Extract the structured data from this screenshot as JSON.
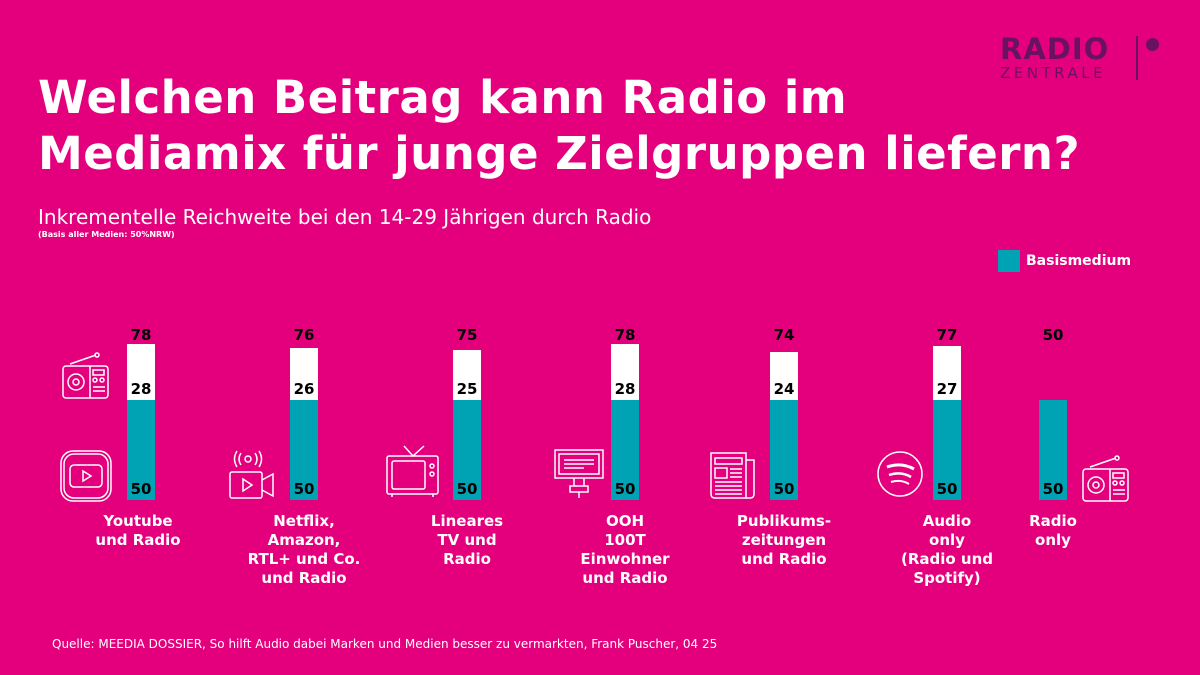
{
  "title_line1": "Welchen Beitrag kann Radio im",
  "title_line2": "Mediamix für junge Zielgruppen liefern?",
  "logo": {
    "line1": "RADIO",
    "line2": "ZENTRALE"
  },
  "source": "Quelle: MEEDIA DOSSIER, So hilft Audio dabei Marken und Medien besser zu vermarkten, Frank Puscher, 04 25",
  "colors": {
    "background": "#E4007D",
    "basismedium": "#00A3B4",
    "increment": "#FFFFFF",
    "logo": "#6A1262"
  },
  "icons": [
    "radio-icon",
    "youtube-icon",
    "video-camera-broadcast-icon",
    "tv-icon",
    "billboard-icon",
    "newspaper-icon",
    "spotify-icon",
    "radio-icon"
  ],
  "chart_data": {
    "type": "bar",
    "stacked": true,
    "title": "Inkrementelle Reichweite bei den 14-29 Jährigen durch Radio",
    "subtitle": "(Basis aller Medien: 50%NRW)",
    "legend": {
      "label": "Basismedium",
      "placement": "top-right"
    },
    "categories": [
      "Youtube\nund Radio",
      "Netflix,\nAmazon,\nRTL+ und Co.\nund Radio",
      "Lineares\nTV und\nRadio",
      "OOH\n100T\nEinwohner\nund Radio",
      "Publikums-\nzeitungen\nund Radio",
      "Audio\nonly\n(Radio und\nSpotify)",
      "Radio\nonly"
    ],
    "series": [
      {
        "name": "Basismedium",
        "values": [
          50,
          50,
          50,
          50,
          50,
          50,
          50
        ]
      },
      {
        "values": [
          28,
          26,
          25,
          28,
          24,
          27,
          null
        ]
      }
    ],
    "totals": [
      78,
      76,
      75,
      78,
      74,
      77,
      50
    ],
    "ylim": [
      0,
      80
    ],
    "grid": false
  }
}
